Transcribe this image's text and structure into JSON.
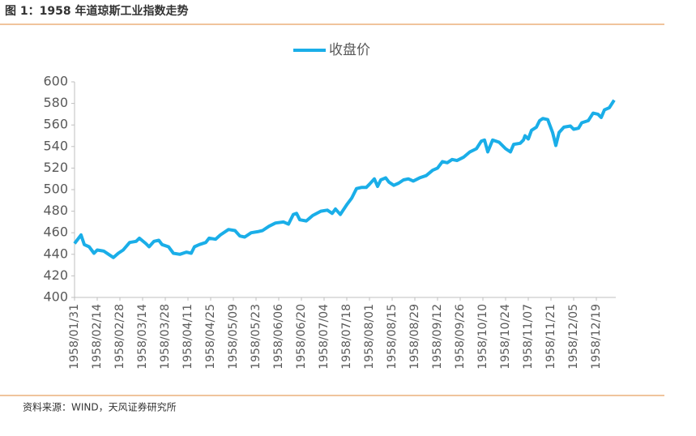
{
  "chart_data": {
    "type": "line",
    "title": "图 1：1958 年道琼斯工业指数走势",
    "source": "资料来源：WIND，天风证券研究所",
    "legend": "top",
    "x": [
      "1958/01/31",
      "1958/02/04",
      "1958/02/06",
      "1958/02/09",
      "1958/02/12",
      "1958/02/14",
      "1958/02/18",
      "1958/02/21",
      "1958/02/24",
      "1958/02/27",
      "1958/03/02",
      "1958/03/06",
      "1958/03/10",
      "1958/03/12",
      "1958/03/16",
      "1958/03/18",
      "1958/03/21",
      "1958/03/24",
      "1958/03/26",
      "1958/03/30",
      "1958/04/02",
      "1958/04/06",
      "1958/04/10",
      "1958/04/13",
      "1958/04/15",
      "1958/04/18",
      "1958/04/22",
      "1958/04/24",
      "1958/04/28",
      "1958/05/01",
      "1958/05/06",
      "1958/05/10",
      "1958/05/13",
      "1958/05/16",
      "1958/05/20",
      "1958/05/24",
      "1958/05/27",
      "1958/05/31",
      "1958/06/04",
      "1958/06/09",
      "1958/06/12",
      "1958/06/15",
      "1958/06/17",
      "1958/06/19",
      "1958/06/23",
      "1958/06/27",
      "1958/07/02",
      "1958/07/06",
      "1958/07/09",
      "1958/07/11",
      "1958/07/14",
      "1958/07/18",
      "1958/07/21",
      "1958/07/24",
      "1958/07/27",
      "1958/07/30",
      "1958/08/01",
      "1958/08/04",
      "1958/08/06",
      "1958/08/08",
      "1958/08/11",
      "1958/08/13",
      "1958/08/16",
      "1958/08/19",
      "1958/08/22",
      "1958/08/25",
      "1958/08/28",
      "1958/09/01",
      "1958/09/05",
      "1958/09/09",
      "1958/09/12",
      "1958/09/15",
      "1958/09/18",
      "1958/09/21",
      "1958/09/24",
      "1958/09/28",
      "1958/10/02",
      "1958/10/06",
      "1958/10/09",
      "1958/10/11",
      "1958/10/13",
      "1958/10/16",
      "1958/10/20",
      "1958/10/24",
      "1958/10/27",
      "1958/10/29",
      "1958/11/02",
      "1958/11/04",
      "1958/11/05",
      "1958/11/07",
      "1958/11/09",
      "1958/11/12",
      "1958/11/14",
      "1958/11/16",
      "1958/11/19",
      "1958/11/22",
      "1958/11/24",
      "1958/11/26",
      "1958/11/29",
      "1958/12/03",
      "1958/12/05",
      "1958/12/08",
      "1958/12/10",
      "1958/12/14",
      "1958/12/17",
      "1958/12/20",
      "1958/12/22",
      "1958/12/24",
      "1958/12/27",
      "1958/12/30"
    ],
    "series": [
      {
        "name": "收盘价",
        "color": "#1aaee8",
        "values": [
          450,
          458,
          449,
          447,
          441,
          444,
          443,
          440,
          437,
          441,
          444,
          451,
          452,
          455,
          450,
          447,
          452,
          453,
          449,
          447,
          441,
          440,
          442,
          441,
          447,
          449,
          451,
          455,
          454,
          458,
          463,
          462,
          457,
          456,
          460,
          461,
          462,
          466,
          469,
          470,
          468,
          477,
          478,
          472,
          471,
          476,
          480,
          481,
          478,
          482,
          477,
          486,
          492,
          501,
          502,
          502,
          505,
          510,
          503,
          509,
          511,
          507,
          504,
          506,
          509,
          510,
          508,
          511,
          513,
          518,
          520,
          526,
          525,
          528,
          527,
          530,
          535,
          538,
          545,
          546,
          535,
          546,
          544,
          538,
          535,
          542,
          543,
          546,
          550,
          547,
          555,
          558,
          564,
          566,
          565,
          553,
          541,
          553,
          558,
          559,
          556,
          557,
          562,
          564,
          571,
          570,
          567,
          574,
          576,
          583
        ]
      }
    ],
    "xlim": [
      "1958/01/31",
      "1958/12/31"
    ],
    "xticks": [
      "1958/01/31",
      "1958/02/14",
      "1958/02/28",
      "1958/03/14",
      "1958/03/28",
      "1958/04/11",
      "1958/04/25",
      "1958/05/09",
      "1958/05/23",
      "1958/06/06",
      "1958/06/20",
      "1958/07/04",
      "1958/07/18",
      "1958/08/01",
      "1958/08/15",
      "1958/08/29",
      "1958/09/12",
      "1958/09/26",
      "1958/10/10",
      "1958/10/24",
      "1958/11/07",
      "1958/11/21",
      "1958/12/05",
      "1958/12/19"
    ],
    "ylim": [
      400,
      600
    ],
    "yticks": [
      400,
      420,
      440,
      460,
      480,
      500,
      520,
      540,
      560,
      580,
      600
    ],
    "grid": false
  }
}
